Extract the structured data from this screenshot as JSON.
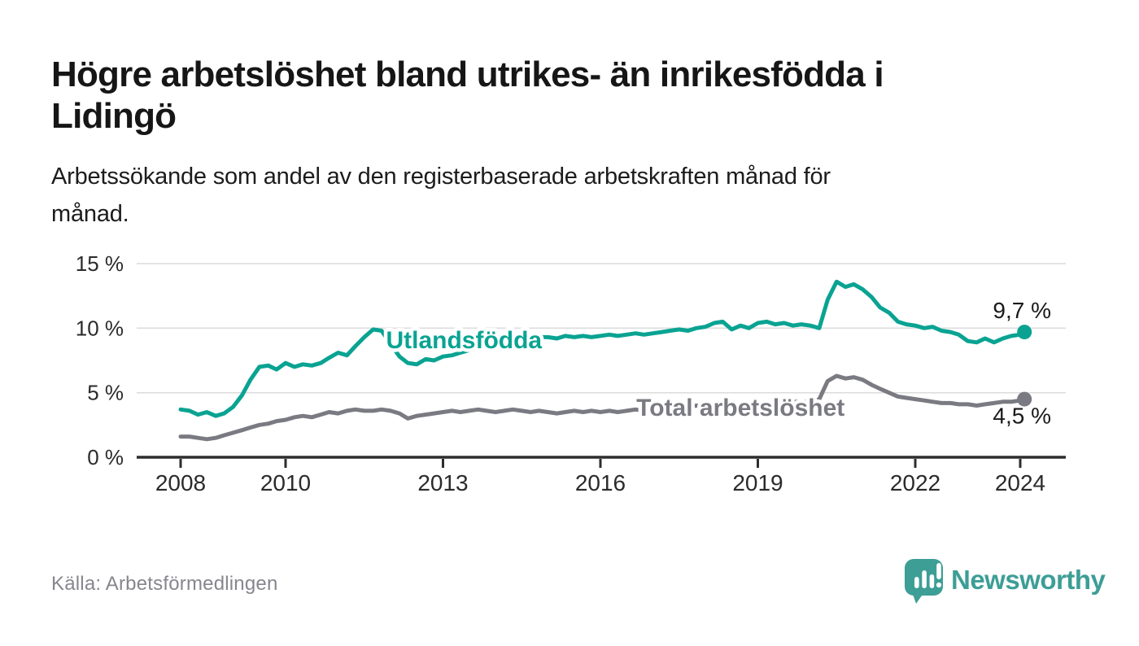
{
  "chart_data": {
    "type": "line",
    "title_lines": [
      "Högre arbetslöshet bland utrikes- än inrikesfödda i",
      "Lidingö"
    ],
    "subtitle_lines": [
      "Arbetssökande som andel av den registerbaserade arbetskraften månad för",
      "månad."
    ],
    "source": "Källa: Arbetsförmedlingen",
    "brand": "Newsworthy",
    "unit": "%",
    "grid": true,
    "legend_position": "inline",
    "x_axis": {
      "ticks": [
        2008,
        2010,
        2013,
        2016,
        2019,
        2022,
        2024
      ],
      "range_years": [
        2007.1,
        2024.9
      ]
    },
    "y_axis": {
      "ticks": [
        {
          "value": 15,
          "label": "15 %"
        },
        {
          "value": 10,
          "label": "10 %"
        },
        {
          "value": 5,
          "label": "5 %"
        },
        {
          "value": 0,
          "label": "0 %"
        }
      ],
      "range": [
        0,
        15
      ]
    },
    "style": {
      "grid_color": "#dcdcdc",
      "axis_color": "#2d2d2d",
      "tick_text_color": "#2b2b2b",
      "value_label_color": "#1a1a1a",
      "brand_teal": "#3d9e96"
    },
    "series": [
      {
        "name": "Utlandsfödda",
        "color": "#0aa392",
        "end_value_label": "9,7 %",
        "end_label_position": "above",
        "inline_label_anchor": {
          "year": 2013.4,
          "value": 9.14
        },
        "points": [
          [
            2008,
            3.7
          ],
          [
            2008.17,
            3.6
          ],
          [
            2008.33,
            3.3
          ],
          [
            2008.5,
            3.5
          ],
          [
            2008.67,
            3.2
          ],
          [
            2008.83,
            3.4
          ],
          [
            2009,
            3.9
          ],
          [
            2009.17,
            4.8
          ],
          [
            2009.33,
            6.0
          ],
          [
            2009.5,
            7.0
          ],
          [
            2009.67,
            7.1
          ],
          [
            2009.83,
            6.8
          ],
          [
            2010,
            7.3
          ],
          [
            2010.17,
            7.0
          ],
          [
            2010.33,
            7.2
          ],
          [
            2010.5,
            7.1
          ],
          [
            2010.67,
            7.3
          ],
          [
            2010.83,
            7.7
          ],
          [
            2011,
            8.1
          ],
          [
            2011.17,
            7.9
          ],
          [
            2011.33,
            8.6
          ],
          [
            2011.5,
            9.3
          ],
          [
            2011.67,
            9.9
          ],
          [
            2011.83,
            9.8
          ],
          [
            2012,
            8.8
          ],
          [
            2012.17,
            7.8
          ],
          [
            2012.33,
            7.3
          ],
          [
            2012.5,
            7.2
          ],
          [
            2012.67,
            7.6
          ],
          [
            2012.83,
            7.5
          ],
          [
            2013,
            7.8
          ],
          [
            2013.17,
            7.9
          ],
          [
            2013.33,
            8.1
          ],
          [
            2013.5,
            8.3
          ],
          [
            2013.67,
            8.5
          ],
          [
            2013.83,
            8.7
          ],
          [
            2014,
            8.8
          ],
          [
            2014.17,
            8.9
          ],
          [
            2014.33,
            9.0
          ],
          [
            2014.5,
            9.1
          ],
          [
            2014.67,
            9.2
          ],
          [
            2014.83,
            9.3
          ],
          [
            2015,
            9.3
          ],
          [
            2015.17,
            9.2
          ],
          [
            2015.33,
            9.4
          ],
          [
            2015.5,
            9.3
          ],
          [
            2015.67,
            9.4
          ],
          [
            2015.83,
            9.3
          ],
          [
            2016,
            9.4
          ],
          [
            2016.17,
            9.5
          ],
          [
            2016.33,
            9.4
          ],
          [
            2016.5,
            9.5
          ],
          [
            2016.67,
            9.6
          ],
          [
            2016.83,
            9.5
          ],
          [
            2017,
            9.6
          ],
          [
            2017.17,
            9.7
          ],
          [
            2017.33,
            9.8
          ],
          [
            2017.5,
            9.9
          ],
          [
            2017.67,
            9.8
          ],
          [
            2017.83,
            10.0
          ],
          [
            2018,
            10.1
          ],
          [
            2018.17,
            10.4
          ],
          [
            2018.33,
            10.5
          ],
          [
            2018.5,
            9.9
          ],
          [
            2018.67,
            10.2
          ],
          [
            2018.83,
            10.0
          ],
          [
            2019,
            10.4
          ],
          [
            2019.17,
            10.5
          ],
          [
            2019.33,
            10.3
          ],
          [
            2019.5,
            10.4
          ],
          [
            2019.67,
            10.2
          ],
          [
            2019.83,
            10.3
          ],
          [
            2020,
            10.2
          ],
          [
            2020.17,
            10.0
          ],
          [
            2020.33,
            12.2
          ],
          [
            2020.5,
            13.6
          ],
          [
            2020.67,
            13.2
          ],
          [
            2020.83,
            13.4
          ],
          [
            2021,
            13.0
          ],
          [
            2021.17,
            12.4
          ],
          [
            2021.33,
            11.6
          ],
          [
            2021.5,
            11.2
          ],
          [
            2021.67,
            10.5
          ],
          [
            2021.83,
            10.3
          ],
          [
            2022,
            10.2
          ],
          [
            2022.17,
            10.0
          ],
          [
            2022.33,
            10.1
          ],
          [
            2022.5,
            9.8
          ],
          [
            2022.67,
            9.7
          ],
          [
            2022.83,
            9.5
          ],
          [
            2023,
            9.0
          ],
          [
            2023.17,
            8.9
          ],
          [
            2023.33,
            9.2
          ],
          [
            2023.5,
            8.9
          ],
          [
            2023.67,
            9.2
          ],
          [
            2023.83,
            9.4
          ],
          [
            2024,
            9.5
          ],
          [
            2024.08,
            9.7
          ]
        ]
      },
      {
        "name": "Total arbetslöshet",
        "color": "#7a7a82",
        "end_value_label": "4,5 %",
        "end_label_position": "below",
        "inline_label_anchor": {
          "year": 2018.67,
          "value": 3.91
        },
        "points": [
          [
            2008,
            1.6
          ],
          [
            2008.17,
            1.6
          ],
          [
            2008.33,
            1.5
          ],
          [
            2008.5,
            1.4
          ],
          [
            2008.67,
            1.5
          ],
          [
            2008.83,
            1.7
          ],
          [
            2009,
            1.9
          ],
          [
            2009.17,
            2.1
          ],
          [
            2009.33,
            2.3
          ],
          [
            2009.5,
            2.5
          ],
          [
            2009.67,
            2.6
          ],
          [
            2009.83,
            2.8
          ],
          [
            2010,
            2.9
          ],
          [
            2010.17,
            3.1
          ],
          [
            2010.33,
            3.2
          ],
          [
            2010.5,
            3.1
          ],
          [
            2010.67,
            3.3
          ],
          [
            2010.83,
            3.5
          ],
          [
            2011,
            3.4
          ],
          [
            2011.17,
            3.6
          ],
          [
            2011.33,
            3.7
          ],
          [
            2011.5,
            3.6
          ],
          [
            2011.67,
            3.6
          ],
          [
            2011.83,
            3.7
          ],
          [
            2012,
            3.6
          ],
          [
            2012.17,
            3.4
          ],
          [
            2012.33,
            3.0
          ],
          [
            2012.5,
            3.2
          ],
          [
            2012.67,
            3.3
          ],
          [
            2012.83,
            3.4
          ],
          [
            2013,
            3.5
          ],
          [
            2013.17,
            3.6
          ],
          [
            2013.33,
            3.5
          ],
          [
            2013.5,
            3.6
          ],
          [
            2013.67,
            3.7
          ],
          [
            2013.83,
            3.6
          ],
          [
            2014,
            3.5
          ],
          [
            2014.17,
            3.6
          ],
          [
            2014.33,
            3.7
          ],
          [
            2014.5,
            3.6
          ],
          [
            2014.67,
            3.5
          ],
          [
            2014.83,
            3.6
          ],
          [
            2015,
            3.5
          ],
          [
            2015.17,
            3.4
          ],
          [
            2015.33,
            3.5
          ],
          [
            2015.5,
            3.6
          ],
          [
            2015.67,
            3.5
          ],
          [
            2015.83,
            3.6
          ],
          [
            2016,
            3.5
          ],
          [
            2016.17,
            3.6
          ],
          [
            2016.33,
            3.5
          ],
          [
            2016.5,
            3.6
          ],
          [
            2016.67,
            3.7
          ],
          [
            2016.83,
            3.6
          ],
          [
            2017,
            3.7
          ],
          [
            2017.17,
            3.8
          ],
          [
            2017.33,
            3.8
          ],
          [
            2017.5,
            3.9
          ],
          [
            2017.67,
            3.9
          ],
          [
            2017.83,
            4.0
          ],
          [
            2018,
            4.0
          ],
          [
            2018.17,
            4.0
          ],
          [
            2018.33,
            4.1
          ],
          [
            2018.5,
            4.1
          ],
          [
            2018.67,
            4.1
          ],
          [
            2018.83,
            4.2
          ],
          [
            2019,
            4.2
          ],
          [
            2019.17,
            4.2
          ],
          [
            2019.33,
            4.3
          ],
          [
            2019.5,
            4.3
          ],
          [
            2019.67,
            4.3
          ],
          [
            2019.83,
            4.3
          ],
          [
            2020,
            4.3
          ],
          [
            2020.17,
            4.5
          ],
          [
            2020.33,
            5.9
          ],
          [
            2020.5,
            6.3
          ],
          [
            2020.67,
            6.1
          ],
          [
            2020.83,
            6.2
          ],
          [
            2021,
            6.0
          ],
          [
            2021.17,
            5.6
          ],
          [
            2021.33,
            5.3
          ],
          [
            2021.5,
            5.0
          ],
          [
            2021.67,
            4.7
          ],
          [
            2021.83,
            4.6
          ],
          [
            2022,
            4.5
          ],
          [
            2022.17,
            4.4
          ],
          [
            2022.33,
            4.3
          ],
          [
            2022.5,
            4.2
          ],
          [
            2022.67,
            4.2
          ],
          [
            2022.83,
            4.1
          ],
          [
            2023,
            4.1
          ],
          [
            2023.17,
            4.0
          ],
          [
            2023.33,
            4.1
          ],
          [
            2023.5,
            4.2
          ],
          [
            2023.67,
            4.3
          ],
          [
            2023.83,
            4.3
          ],
          [
            2024,
            4.4
          ],
          [
            2024.08,
            4.5
          ]
        ]
      }
    ]
  }
}
